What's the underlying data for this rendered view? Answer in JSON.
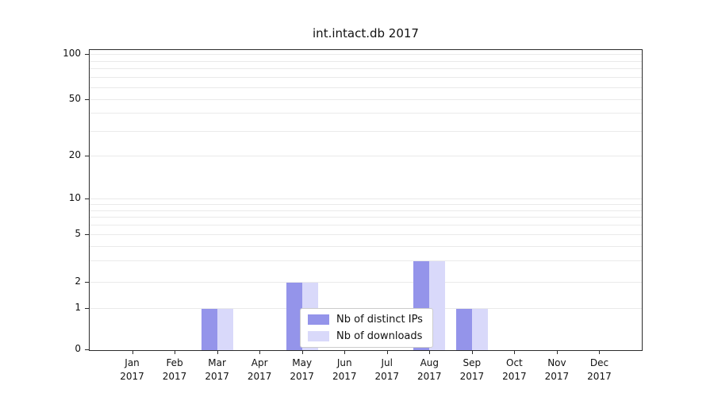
{
  "chart_data": {
    "type": "bar",
    "title": "int.intact.db 2017",
    "categories": [
      "Jan",
      "Feb",
      "Mar",
      "Apr",
      "May",
      "Jun",
      "Jul",
      "Aug",
      "Sep",
      "Oct",
      "Nov",
      "Dec"
    ],
    "year_label": "2017",
    "series": [
      {
        "name": "Nb of distinct IPs",
        "color": "#9494ea",
        "values": [
          0,
          0,
          1,
          0,
          2,
          0,
          0,
          3,
          1,
          0,
          0,
          0
        ]
      },
      {
        "name": "Nb of downloads",
        "color": "#d9d9fa",
        "values": [
          0,
          0,
          1,
          0,
          2,
          0,
          0,
          3,
          1,
          0,
          0,
          0
        ]
      }
    ],
    "yticks": [
      100,
      50,
      20,
      10,
      5,
      2,
      1,
      0
    ],
    "yscale": "log",
    "ylim": [
      0,
      100
    ],
    "grid": true,
    "legend_position": "lower center",
    "background_color": "#ffffff",
    "gridline_color": "#eaeaea"
  }
}
